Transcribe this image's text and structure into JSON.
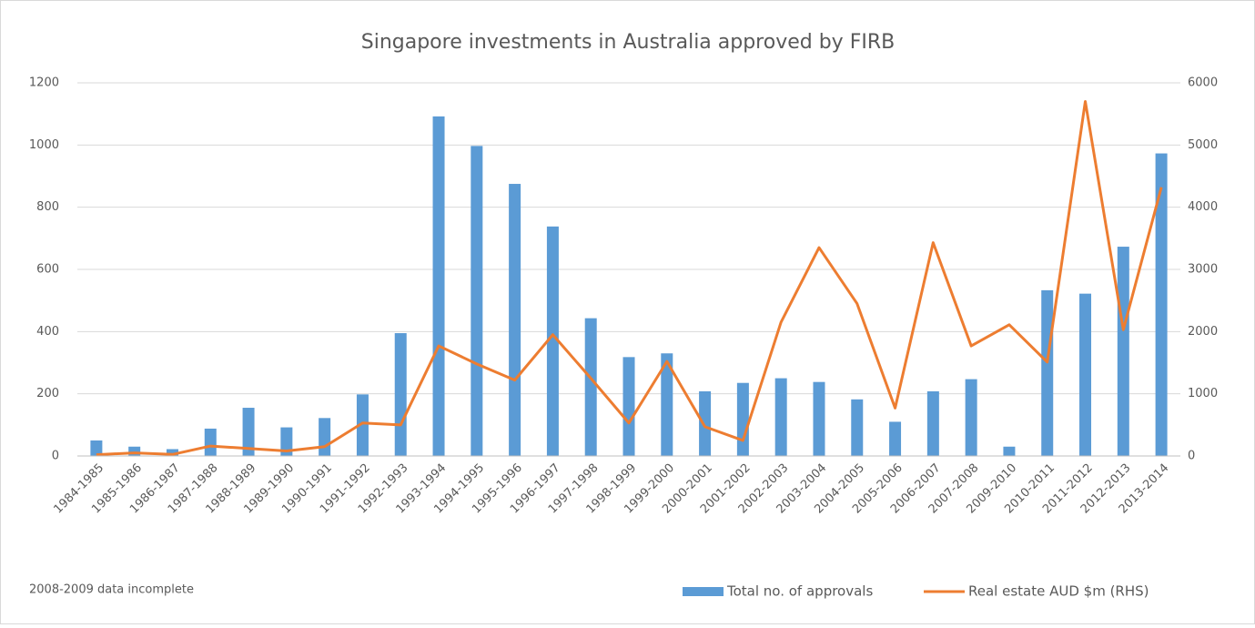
{
  "chart_data": {
    "type": "bar-line",
    "title": "Singapore investments in Australia  approved by FIRB",
    "annotation": "2008-2009 data incomplete",
    "categories": [
      "1984-1985",
      "1985-1986",
      "1986-1987",
      "1987-1988",
      "1988-1989",
      "1989-1990",
      "1990-1991",
      "1991-1992",
      "1992-1993",
      "1993-1994",
      "1994-1995",
      "1995-1996",
      "1996-1997",
      "1997-1998",
      "1998-1999",
      "1999-2000",
      "2000-2001",
      "2001-2002",
      "2002-2003",
      "2003-2004",
      "2004-2005",
      "2005-2006",
      "2006-2007",
      "2007-2008",
      "2009-2010",
      "2010-2011",
      "2011-2012",
      "2012-2013",
      "2013-2014"
    ],
    "series": [
      {
        "name": "Total no. of approvals",
        "type": "bar",
        "color": "#5b9bd5",
        "axis": "y",
        "values": [
          50,
          30,
          22,
          88,
          155,
          92,
          122,
          198,
          395,
          1092,
          997,
          875,
          738,
          443,
          318,
          330,
          208,
          235,
          250,
          238,
          182,
          110,
          208,
          247,
          30,
          533,
          522,
          673,
          973
        ]
      },
      {
        "name": "Real estate AUD $m (RHS)",
        "type": "line",
        "color": "#ed7d31",
        "axis": "y2",
        "values": [
          20,
          50,
          25,
          160,
          120,
          80,
          150,
          530,
          500,
          1770,
          1480,
          1220,
          1950,
          1250,
          530,
          1520,
          470,
          250,
          2150,
          3350,
          2450,
          770,
          3430,
          1770,
          2110,
          1510,
          5700,
          2030,
          4320
        ]
      }
    ],
    "ylim": [
      0,
      1200
    ],
    "yticks": [
      0,
      200,
      400,
      600,
      800,
      1000,
      1200
    ],
    "y2lim": [
      0,
      6000
    ],
    "y2ticks": [
      0,
      1000,
      2000,
      3000,
      4000,
      5000,
      6000
    ],
    "grid": true,
    "legend": "bottom-right"
  }
}
